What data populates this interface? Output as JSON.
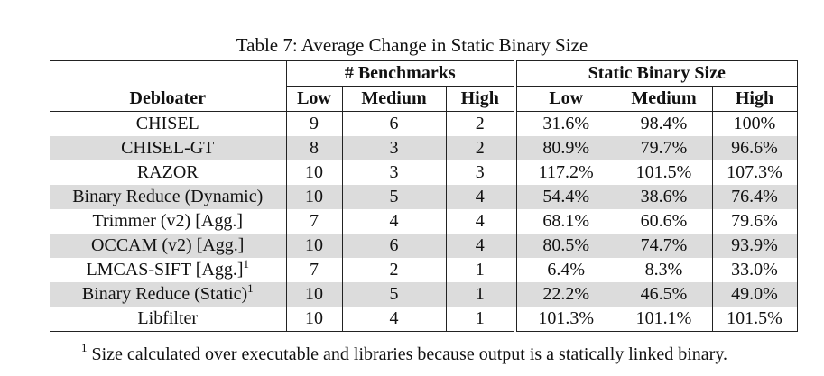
{
  "caption": "Table 7: Average Change in Static Binary Size",
  "table": {
    "group_headers": {
      "benchmarks": "# Benchmarks",
      "size": "Static Binary Size"
    },
    "columns": [
      "Debloater",
      "Low",
      "Medium",
      "High",
      "Low",
      "Medium",
      "High"
    ],
    "rows": [
      {
        "name": "CHISEL",
        "sup": "",
        "b_low": "9",
        "b_med": "6",
        "b_high": "2",
        "s_low": "31.6%",
        "s_med": "98.4%",
        "s_high": "100%"
      },
      {
        "name": "CHISEL-GT",
        "sup": "",
        "b_low": "8",
        "b_med": "3",
        "b_high": "2",
        "s_low": "80.9%",
        "s_med": "79.7%",
        "s_high": "96.6%"
      },
      {
        "name": "RAZOR",
        "sup": "",
        "b_low": "10",
        "b_med": "3",
        "b_high": "3",
        "s_low": "117.2%",
        "s_med": "101.5%",
        "s_high": "107.3%"
      },
      {
        "name": "Binary Reduce (Dynamic)",
        "sup": "",
        "b_low": "10",
        "b_med": "5",
        "b_high": "4",
        "s_low": "54.4%",
        "s_med": "38.6%",
        "s_high": "76.4%"
      },
      {
        "name": "Trimmer (v2) [Agg.]",
        "sup": "",
        "b_low": "7",
        "b_med": "4",
        "b_high": "4",
        "s_low": "68.1%",
        "s_med": "60.6%",
        "s_high": "79.6%"
      },
      {
        "name": "OCCAM (v2) [Agg.]",
        "sup": "",
        "b_low": "10",
        "b_med": "6",
        "b_high": "4",
        "s_low": "80.5%",
        "s_med": "74.7%",
        "s_high": "93.9%"
      },
      {
        "name": "LMCAS-SIFT [Agg.]",
        "sup": "1",
        "b_low": "7",
        "b_med": "2",
        "b_high": "1",
        "s_low": "6.4%",
        "s_med": "8.3%",
        "s_high": "33.0%"
      },
      {
        "name": "Binary Reduce (Static)",
        "sup": "1",
        "b_low": "10",
        "b_med": "5",
        "b_high": "1",
        "s_low": "22.2%",
        "s_med": "46.5%",
        "s_high": "49.0%"
      },
      {
        "name": "Libfilter",
        "sup": "",
        "b_low": "10",
        "b_med": "4",
        "b_high": "1",
        "s_low": "101.3%",
        "s_med": "101.1%",
        "s_high": "101.5%"
      }
    ]
  },
  "footnote": {
    "mark": "1",
    "text": "Size calculated over executable and libraries because output is a statically linked binary."
  }
}
